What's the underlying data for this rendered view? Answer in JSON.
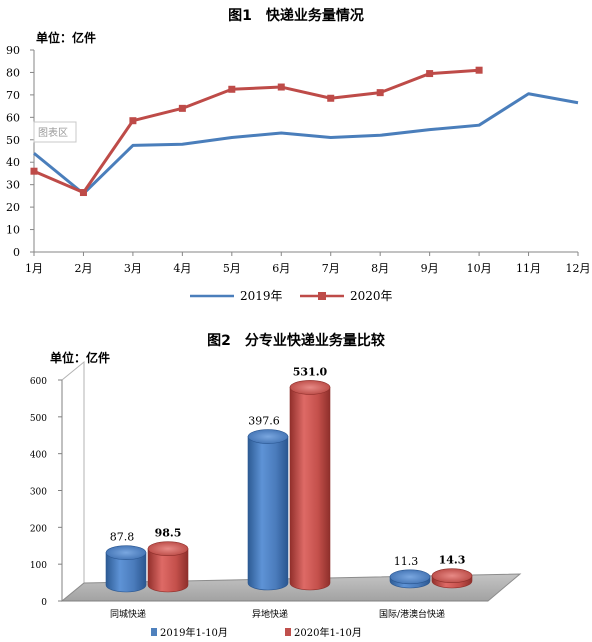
{
  "chart_data": [
    {
      "type": "line",
      "title": "图1　快递业务量情况",
      "unit_label": "单位：亿件",
      "categories": [
        "1月",
        "2月",
        "3月",
        "4月",
        "5月",
        "6月",
        "7月",
        "8月",
        "9月",
        "10月",
        "11月",
        "12月"
      ],
      "ylim": [
        0,
        90
      ],
      "yticks": [
        0,
        10,
        20,
        30,
        40,
        50,
        60,
        70,
        80,
        90
      ],
      "grid": false,
      "legend_position": "bottom",
      "series": [
        {
          "name": "2019年",
          "color": "#4a7ebb",
          "values": [
            44,
            26,
            47.5,
            48,
            51,
            53,
            51,
            52,
            54.5,
            56.5,
            70.5,
            66.5
          ]
        },
        {
          "name": "2020年",
          "color": "#be4b48",
          "values": [
            36,
            26.5,
            58.5,
            64,
            72.5,
            73.5,
            68.5,
            71,
            79.5,
            81,
            null,
            null
          ]
        }
      ],
      "annotation": "图表区"
    },
    {
      "type": "bar",
      "title": "图2　分专业快递业务量比较",
      "unit_label": "单位：亿件",
      "categories": [
        "同城快递",
        "异地快递",
        "国际/港澳台快递"
      ],
      "ylim": [
        0,
        600
      ],
      "yticks": [
        0,
        100,
        200,
        300,
        400,
        500,
        600
      ],
      "grid": false,
      "legend_position": "bottom",
      "series": [
        {
          "name": "2019年1-10月",
          "color": "#4f81bd",
          "values": [
            87.8,
            397.6,
            11.3
          ],
          "labels": [
            "87.8",
            "397.6",
            "11.3"
          ]
        },
        {
          "name": "2020年1-10月",
          "color": "#c0504d",
          "values": [
            98.5,
            531.0,
            14.3
          ],
          "labels": [
            "98.5",
            "531.0",
            "14.3"
          ]
        }
      ]
    }
  ]
}
